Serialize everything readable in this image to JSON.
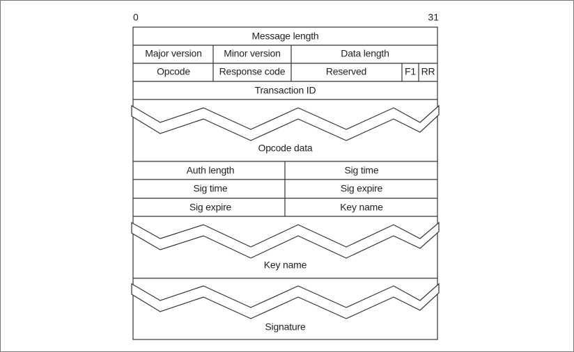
{
  "bit_labels": {
    "start": "0",
    "end": "31"
  },
  "fields": {
    "message_length": "Message length",
    "major_version": "Major version",
    "minor_version": "Minor version",
    "data_length": "Data length",
    "opcode": "Opcode",
    "response_code": "Response code",
    "reserved": "Reserved",
    "f1": "F1",
    "rr": "RR",
    "transaction_id": "Transaction ID",
    "opcode_data": "Opcode data",
    "auth_length": "Auth length",
    "sig_time_1": "Sig time",
    "sig_time_2": "Sig time",
    "sig_expire_1": "Sig expire",
    "sig_expire_2": "Sig expire",
    "key_name_1": "Key name",
    "key_name_2": "Key name",
    "signature": "Signature"
  }
}
